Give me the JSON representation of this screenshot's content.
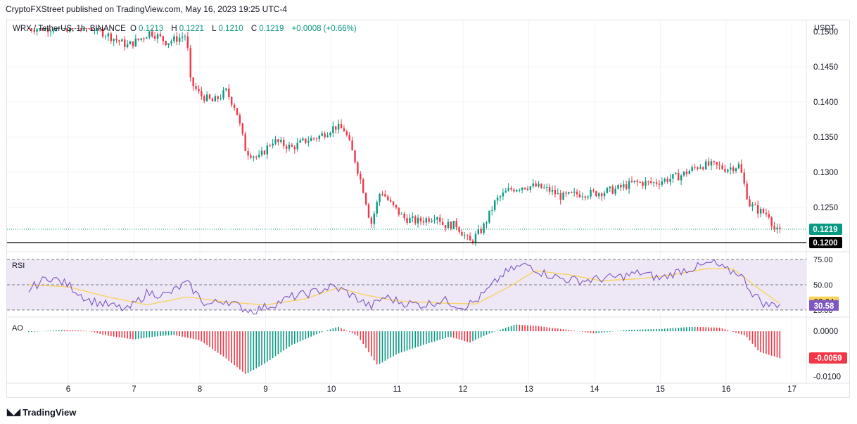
{
  "header": {
    "publisher_line": "CryptoFXStreet published on TradingView.com, May 16, 2023 19:25 UTC-4"
  },
  "legend": {
    "symbol": "WRX / TetherUS, 1h, BINANCE",
    "open_label": "O",
    "open": "0.1213",
    "high_label": "H",
    "high": "0.1221",
    "low_label": "L",
    "low": "0.1210",
    "close_label": "C",
    "close": "0.1219",
    "change": "+0.0008 (+0.66%)"
  },
  "currency": "USDT",
  "price_axis_ticks": [
    "0.1500",
    "0.1450",
    "0.1400",
    "0.1350",
    "0.1300",
    "0.1250",
    "0.1219",
    "0.1200"
  ],
  "rsi_pane": {
    "label": "RSI",
    "ticks": [
      "75.00",
      "50.00",
      "25.00"
    ],
    "rsi_value": "30.58",
    "ma_value": "32.04"
  },
  "ao_pane": {
    "label": "AO",
    "ticks": [
      "0.0000",
      "-0.0100"
    ],
    "last_value": "-0.0059"
  },
  "x_axis_ticks": [
    "6",
    "7",
    "8",
    "9",
    "10",
    "11",
    "12",
    "13",
    "14",
    "15",
    "16",
    "17"
  ],
  "footer": {
    "brand": "TradingView"
  },
  "colors": {
    "up": "#089981",
    "down": "#f23645",
    "rsi_line": "#7e57c2",
    "rsi_ma": "#f7d358",
    "rsi_band": "#ede7f6",
    "horizontal_line": "#000000"
  },
  "chart_data": [
    {
      "type": "candlestick",
      "title": "WRX / TetherUS, 1h, BINANCE",
      "ylim": [
        0.119,
        0.1505
      ],
      "x_days": [
        "6",
        "7",
        "8",
        "9",
        "10",
        "11",
        "12",
        "13",
        "14",
        "15",
        "16",
        "17"
      ],
      "last_close": 0.1219,
      "support_line": 0.12,
      "price_path": [
        [
          5.4,
          0.1505
        ],
        [
          6.4,
          0.1505
        ],
        [
          6.6,
          0.1495
        ],
        [
          6.9,
          0.148
        ],
        [
          7.1,
          0.149
        ],
        [
          7.25,
          0.15
        ],
        [
          7.5,
          0.1485
        ],
        [
          7.8,
          0.1495
        ],
        [
          7.85,
          0.143
        ],
        [
          8.0,
          0.141
        ],
        [
          8.2,
          0.14
        ],
        [
          8.4,
          0.1415
        ],
        [
          8.55,
          0.139
        ],
        [
          8.7,
          0.133
        ],
        [
          8.9,
          0.132
        ],
        [
          9.1,
          0.1345
        ],
        [
          9.4,
          0.1335
        ],
        [
          9.6,
          0.1345
        ],
        [
          9.8,
          0.135
        ],
        [
          10.05,
          0.1365
        ],
        [
          10.2,
          0.136
        ],
        [
          10.35,
          0.132
        ],
        [
          10.5,
          0.127
        ],
        [
          10.6,
          0.1225
        ],
        [
          10.75,
          0.1275
        ],
        [
          10.9,
          0.1255
        ],
        [
          11.1,
          0.1235
        ],
        [
          11.3,
          0.123
        ],
        [
          11.5,
          0.1235
        ],
        [
          11.6,
          0.124
        ],
        [
          11.7,
          0.1225
        ],
        [
          11.9,
          0.1225
        ],
        [
          12.1,
          0.12
        ],
        [
          12.3,
          0.122
        ],
        [
          12.5,
          0.126
        ],
        [
          12.7,
          0.1275
        ],
        [
          12.9,
          0.128
        ],
        [
          13.1,
          0.128
        ],
        [
          13.3,
          0.1275
        ],
        [
          13.5,
          0.1265
        ],
        [
          13.8,
          0.127
        ],
        [
          14.0,
          0.127
        ],
        [
          14.3,
          0.1275
        ],
        [
          14.6,
          0.1285
        ],
        [
          14.9,
          0.1285
        ],
        [
          15.1,
          0.129
        ],
        [
          15.3,
          0.1295
        ],
        [
          15.6,
          0.131
        ],
        [
          15.8,
          0.131
        ],
        [
          16.0,
          0.1305
        ],
        [
          16.2,
          0.131
        ],
        [
          16.35,
          0.1255
        ],
        [
          16.5,
          0.1245
        ],
        [
          16.65,
          0.124
        ],
        [
          16.75,
          0.1215
        ],
        [
          16.85,
          0.1219
        ]
      ]
    },
    {
      "type": "line",
      "title": "RSI",
      "ylim": [
        20,
        80
      ],
      "levels": [
        75,
        50,
        25
      ],
      "series": [
        {
          "name": "RSI",
          "values_path": [
            [
              5.4,
              45
            ],
            [
              5.7,
              58
            ],
            [
              6.0,
              50
            ],
            [
              6.3,
              35
            ],
            [
              6.6,
              30
            ],
            [
              6.9,
              25
            ],
            [
              7.2,
              42
            ],
            [
              7.5,
              40
            ],
            [
              7.8,
              52
            ],
            [
              8.1,
              30
            ],
            [
              8.4,
              35
            ],
            [
              8.6,
              28
            ],
            [
              8.8,
              24
            ],
            [
              9.1,
              30
            ],
            [
              9.4,
              38
            ],
            [
              9.7,
              42
            ],
            [
              10.0,
              48
            ],
            [
              10.2,
              44
            ],
            [
              10.4,
              36
            ],
            [
              10.6,
              28
            ],
            [
              10.8,
              38
            ],
            [
              11.1,
              32
            ],
            [
              11.4,
              30
            ],
            [
              11.7,
              35
            ],
            [
              12.0,
              28
            ],
            [
              12.2,
              34
            ],
            [
              12.4,
              46
            ],
            [
              12.6,
              60
            ],
            [
              12.8,
              67
            ],
            [
              13.0,
              70
            ],
            [
              13.2,
              62
            ],
            [
              13.5,
              56
            ],
            [
              13.8,
              54
            ],
            [
              14.1,
              56
            ],
            [
              14.4,
              58
            ],
            [
              14.7,
              62
            ],
            [
              15.0,
              56
            ],
            [
              15.3,
              64
            ],
            [
              15.6,
              68
            ],
            [
              15.8,
              72
            ],
            [
              16.0,
              64
            ],
            [
              16.2,
              62
            ],
            [
              16.4,
              42
            ],
            [
              16.6,
              30
            ],
            [
              16.8,
              30.58
            ]
          ]
        },
        {
          "name": "RSI-based MA",
          "values_path": [
            [
              5.4,
              50
            ],
            [
              6.0,
              48
            ],
            [
              6.6,
              38
            ],
            [
              7.2,
              30
            ],
            [
              7.8,
              38
            ],
            [
              8.4,
              33
            ],
            [
              9.0,
              30
            ],
            [
              9.6,
              36
            ],
            [
              10.1,
              47
            ],
            [
              10.5,
              40
            ],
            [
              11.0,
              34
            ],
            [
              11.6,
              32
            ],
            [
              12.2,
              31
            ],
            [
              12.7,
              48
            ],
            [
              13.1,
              64
            ],
            [
              13.6,
              60
            ],
            [
              14.1,
              54
            ],
            [
              14.7,
              56
            ],
            [
              15.2,
              60
            ],
            [
              15.7,
              66
            ],
            [
              16.1,
              66
            ],
            [
              16.5,
              46
            ],
            [
              16.8,
              32.04
            ]
          ]
        }
      ]
    },
    {
      "type": "histogram",
      "title": "AO",
      "ylim": [
        -0.011,
        0.0025
      ],
      "values_path": [
        [
          5.4,
          -0.0002
        ],
        [
          5.9,
          0.0003
        ],
        [
          6.3,
          0.0001
        ],
        [
          6.6,
          -0.001
        ],
        [
          7.0,
          -0.0018
        ],
        [
          7.3,
          -0.0012
        ],
        [
          7.6,
          -0.0008
        ],
        [
          8.0,
          -0.002
        ],
        [
          8.4,
          -0.006
        ],
        [
          8.7,
          -0.0095
        ],
        [
          9.0,
          -0.007
        ],
        [
          9.4,
          -0.003
        ],
        [
          9.8,
          -0.0005
        ],
        [
          10.1,
          0.001
        ],
        [
          10.4,
          -0.001
        ],
        [
          10.7,
          -0.0075
        ],
        [
          11.0,
          -0.005
        ],
        [
          11.4,
          -0.003
        ],
        [
          11.8,
          -0.0012
        ],
        [
          12.1,
          -0.0025
        ],
        [
          12.4,
          -0.0005
        ],
        [
          12.8,
          0.0015
        ],
        [
          13.1,
          0.0012
        ],
        [
          13.5,
          0.0005
        ],
        [
          14.0,
          -0.0005
        ],
        [
          14.5,
          0.0003
        ],
        [
          15.0,
          0.0005
        ],
        [
          15.5,
          0.001
        ],
        [
          15.9,
          0.0008
        ],
        [
          16.3,
          -0.001
        ],
        [
          16.5,
          -0.0045
        ],
        [
          16.8,
          -0.0059
        ]
      ]
    }
  ]
}
